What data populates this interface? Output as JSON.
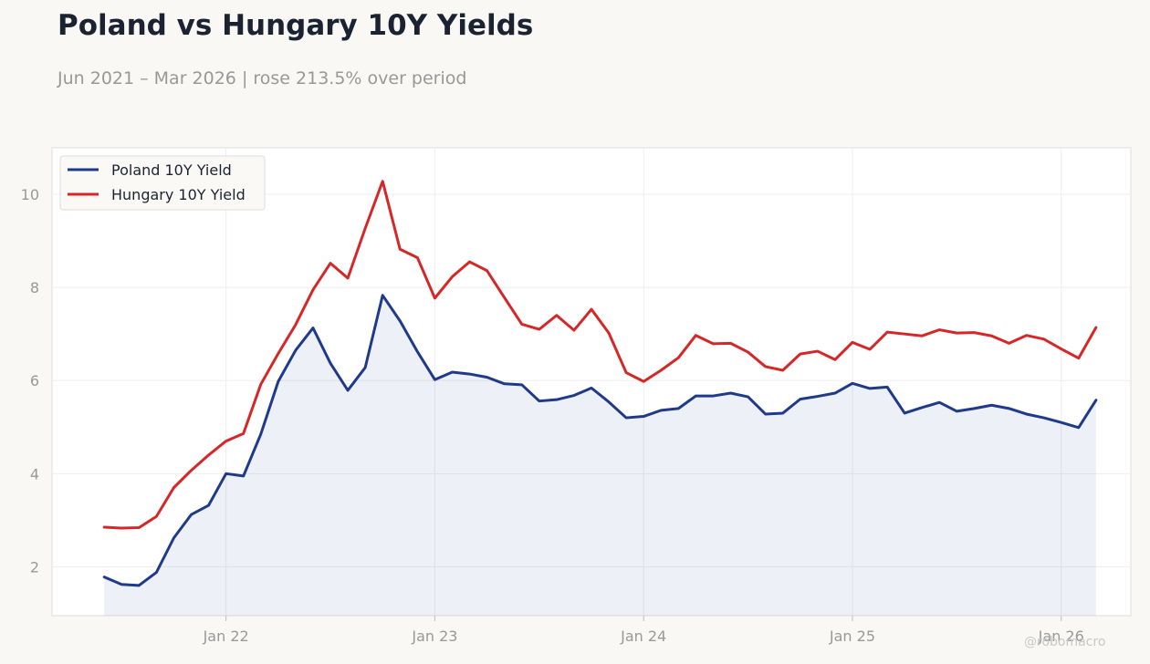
{
  "header": {
    "title": "Poland vs Hungary 10Y Yields",
    "subtitle": "Jun 2021 – Mar 2026 | rose 213.5% over period"
  },
  "watermark": "@robomacro",
  "chart_data": {
    "type": "line",
    "title": "Poland vs Hungary 10Y Yields",
    "subtitle": "Jun 2021 – Mar 2026 | rose 213.5% over period",
    "xlabel": "",
    "ylabel": "",
    "x": [
      "2021-06",
      "2021-07",
      "2021-08",
      "2021-09",
      "2021-10",
      "2021-11",
      "2021-12",
      "2022-01",
      "2022-02",
      "2022-03",
      "2022-04",
      "2022-05",
      "2022-06",
      "2022-07",
      "2022-08",
      "2022-09",
      "2022-10",
      "2022-11",
      "2022-12",
      "2023-01",
      "2023-02",
      "2023-03",
      "2023-04",
      "2023-05",
      "2023-06",
      "2023-07",
      "2023-08",
      "2023-09",
      "2023-10",
      "2023-11",
      "2023-12",
      "2024-01",
      "2024-02",
      "2024-03",
      "2024-04",
      "2024-05",
      "2024-06",
      "2024-07",
      "2024-08",
      "2024-09",
      "2024-10",
      "2024-11",
      "2024-12",
      "2025-01",
      "2025-02",
      "2025-03",
      "2025-04",
      "2025-05",
      "2025-06",
      "2025-07",
      "2025-08",
      "2025-09",
      "2025-10",
      "2025-11",
      "2025-12",
      "2026-01",
      "2026-02",
      "2026-03"
    ],
    "series": [
      {
        "name": "Poland 10Y Yield",
        "color": "#1f3a8a",
        "fill": true,
        "values": [
          1.78,
          1.62,
          1.6,
          1.88,
          2.62,
          3.12,
          3.32,
          4.0,
          3.95,
          4.85,
          5.98,
          6.65,
          7.13,
          6.37,
          5.79,
          6.28,
          7.83,
          7.28,
          6.62,
          6.02,
          6.18,
          6.14,
          6.07,
          5.93,
          5.91,
          5.56,
          5.59,
          5.68,
          5.84,
          5.54,
          5.2,
          5.23,
          5.36,
          5.4,
          5.67,
          5.67,
          5.73,
          5.65,
          5.28,
          5.3,
          5.6,
          5.66,
          5.73,
          5.94,
          5.83,
          5.86,
          5.3,
          5.42,
          5.53,
          5.34,
          5.4,
          5.47,
          5.4,
          5.28,
          5.2,
          5.1,
          4.99,
          5.58
        ]
      },
      {
        "name": "Hungary 10Y Yield",
        "color": "#d62728",
        "fill": false,
        "values": [
          2.85,
          2.83,
          2.84,
          3.08,
          3.7,
          4.07,
          4.4,
          4.7,
          4.86,
          5.92,
          6.58,
          7.2,
          7.95,
          8.52,
          8.2,
          9.27,
          10.28,
          8.82,
          8.64,
          7.77,
          8.23,
          8.55,
          8.36,
          7.78,
          7.21,
          7.1,
          7.4,
          7.08,
          7.53,
          7.02,
          6.17,
          5.98,
          6.22,
          6.49,
          6.97,
          6.79,
          6.8,
          6.61,
          6.3,
          6.22,
          6.57,
          6.63,
          6.45,
          6.82,
          6.67,
          7.04,
          7.0,
          6.96,
          7.09,
          7.02,
          7.03,
          6.96,
          6.8,
          6.97,
          6.89,
          6.68,
          6.48,
          7.14
        ]
      }
    ],
    "xticks": [
      {
        "label": "Jan 22",
        "x": "2022-01"
      },
      {
        "label": "Jan 23",
        "x": "2023-01"
      },
      {
        "label": "Jan 24",
        "x": "2024-01"
      },
      {
        "label": "Jan 25",
        "x": "2025-01"
      },
      {
        "label": "Jan 26",
        "x": "2026-01"
      }
    ],
    "yticks": [
      2,
      4,
      6,
      8,
      10
    ],
    "ylim": [
      0.95,
      11.0
    ],
    "xlim": [
      "2021-03",
      "2026-05"
    ],
    "grid": true,
    "legend": "top-left"
  }
}
